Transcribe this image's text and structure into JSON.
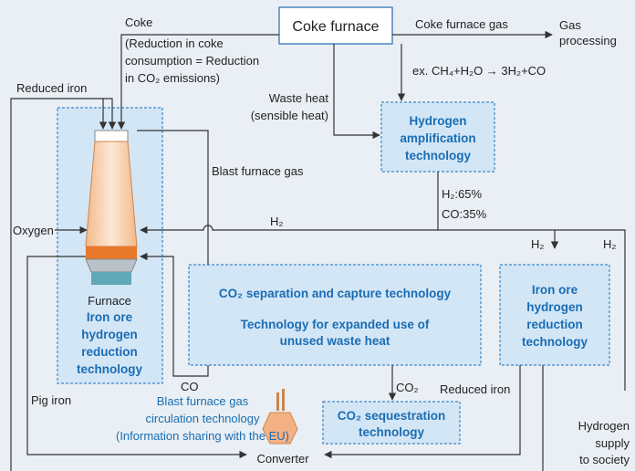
{
  "coke_furnace": "Coke furnace",
  "gas_processing": [
    "Gas",
    "processing"
  ],
  "coke": "Coke",
  "coke_note": [
    "(Reduction in coke",
    "consumption = Reduction",
    "in CO₂ emissions)"
  ],
  "coke_furnace_gas": "Coke furnace gas",
  "reaction": "ex. CH₄+H₂O → 3H₂+CO",
  "waste_heat": [
    "Waste heat",
    "(sensible heat)"
  ],
  "reduced_iron_top": "Reduced iron",
  "hydrogen_amplification": [
    "Hydrogen",
    "amplification",
    "technology"
  ],
  "blast_furnace_gas": "Blast furnace gas",
  "composition": [
    "H₂:65%",
    "CO:35%"
  ],
  "oxygen": "Oxygen",
  "h2_labels": [
    "H₂",
    "H₂",
    "H₂"
  ],
  "furnace": {
    "label": "Furnace",
    "technology": [
      "Iron ore",
      "hydrogen",
      "reduction",
      "technology"
    ]
  },
  "co2_separation": "CO₂ separation and capture technology",
  "waste_heat_technology": [
    "Technology for expanded use of",
    "unused waste heat"
  ],
  "iron_ore_right": [
    "Iron ore",
    "hydrogen",
    "reduction",
    "technology"
  ],
  "co": "CO",
  "pig_iron": "Pig iron",
  "circulation": [
    "Blast furnace gas",
    "circulation technology",
    "(Information sharing with the EU)"
  ],
  "co2": "CO₂",
  "reduced_iron_bottom": "Reduced iron",
  "co2_sequestration": [
    "CO₂ sequestration",
    "technology"
  ],
  "converter": "Converter",
  "hydrogen_supply": [
    "Hydrogen",
    "supply",
    "to society"
  ]
}
